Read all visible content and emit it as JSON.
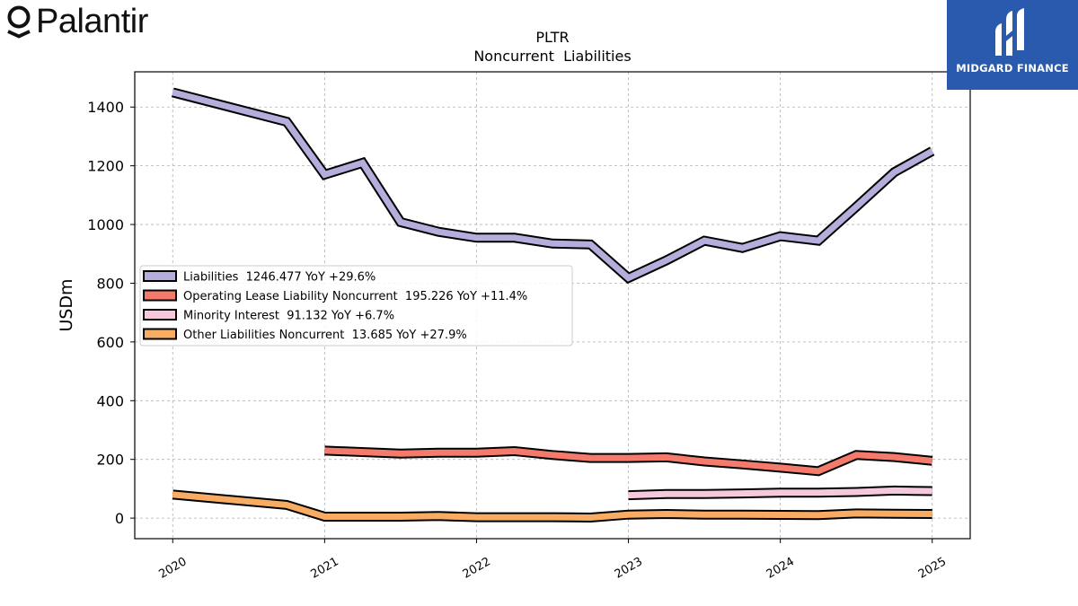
{
  "brand": {
    "left_logo_text": "Palantir",
    "right_logo_text": "MIDGARD FINANCE",
    "right_logo_bg": "#2a5aad"
  },
  "chart_data": {
    "type": "line",
    "title": "PLTR",
    "subtitle": "Noncurrent  Liabilities",
    "xlabel": "",
    "ylabel": "USDm",
    "xlim": [
      2019.75,
      2025.25
    ],
    "ylim": [
      -70,
      1520
    ],
    "x_ticks": [
      2020,
      2021,
      2022,
      2023,
      2024,
      2025
    ],
    "x_tick_labels": [
      "2020",
      "2021",
      "2022",
      "2023",
      "2024",
      "2025"
    ],
    "y_ticks": [
      0,
      200,
      400,
      600,
      800,
      1000,
      1200,
      1400
    ],
    "y_tick_labels": [
      "0",
      "200",
      "400",
      "600",
      "800",
      "1000",
      "1200",
      "1400"
    ],
    "grid": true,
    "legend_position": "center-left",
    "series": [
      {
        "name": "Liabilities",
        "legend_label": "Liabilities  1246.477 YoY +29.6%",
        "color": "#b3aedb",
        "points": [
          [
            2020.0,
            1450
          ],
          [
            2020.75,
            1350
          ],
          [
            2021.0,
            1170
          ],
          [
            2021.25,
            1210
          ],
          [
            2021.5,
            1008
          ],
          [
            2021.75,
            975
          ],
          [
            2022.0,
            955
          ],
          [
            2022.25,
            955
          ],
          [
            2022.5,
            935
          ],
          [
            2022.75,
            932
          ],
          [
            2023.0,
            818
          ],
          [
            2023.25,
            878
          ],
          [
            2023.5,
            945
          ],
          [
            2023.75,
            920
          ],
          [
            2024.0,
            960
          ],
          [
            2024.25,
            945
          ],
          [
            2024.5,
            1060
          ],
          [
            2024.75,
            1178
          ],
          [
            2025.0,
            1250
          ]
        ]
      },
      {
        "name": "Operating Lease Liability Noncurrent",
        "legend_label": "Operating Lease Liability Noncurrent  195.226 YoY +11.4%",
        "color": "#f47a6c",
        "points": [
          [
            2021.0,
            230
          ],
          [
            2021.5,
            220
          ],
          [
            2021.75,
            223
          ],
          [
            2022.0,
            223
          ],
          [
            2022.25,
            228
          ],
          [
            2022.5,
            215
          ],
          [
            2022.75,
            205
          ],
          [
            2023.0,
            205
          ],
          [
            2023.25,
            207
          ],
          [
            2023.5,
            193
          ],
          [
            2023.75,
            183
          ],
          [
            2024.0,
            172
          ],
          [
            2024.25,
            160
          ],
          [
            2024.5,
            215
          ],
          [
            2024.75,
            208
          ],
          [
            2025.0,
            195
          ]
        ]
      },
      {
        "name": "Minority Interest",
        "legend_label": "Minority Interest  91.132 YoY +6.7%",
        "color": "#f6c8dc",
        "points": [
          [
            2023.0,
            78
          ],
          [
            2023.25,
            82
          ],
          [
            2023.5,
            82
          ],
          [
            2023.75,
            84
          ],
          [
            2024.0,
            87
          ],
          [
            2024.25,
            87
          ],
          [
            2024.5,
            89
          ],
          [
            2024.75,
            94
          ],
          [
            2025.0,
            92
          ]
        ]
      },
      {
        "name": "Other Liabilities Noncurrent",
        "legend_label": "Other Liabilities Noncurrent  13.685 YoY +27.9%",
        "color": "#f8ab62",
        "points": [
          [
            2020.0,
            80
          ],
          [
            2020.75,
            45
          ],
          [
            2021.0,
            5
          ],
          [
            2021.5,
            5
          ],
          [
            2021.75,
            7
          ],
          [
            2022.0,
            3
          ],
          [
            2022.5,
            3
          ],
          [
            2022.75,
            2
          ],
          [
            2023.0,
            12
          ],
          [
            2023.25,
            14
          ],
          [
            2023.5,
            12
          ],
          [
            2023.75,
            12
          ],
          [
            2024.0,
            11
          ],
          [
            2024.25,
            10
          ],
          [
            2024.5,
            16
          ],
          [
            2024.75,
            15
          ],
          [
            2025.0,
            14
          ]
        ]
      }
    ]
  }
}
